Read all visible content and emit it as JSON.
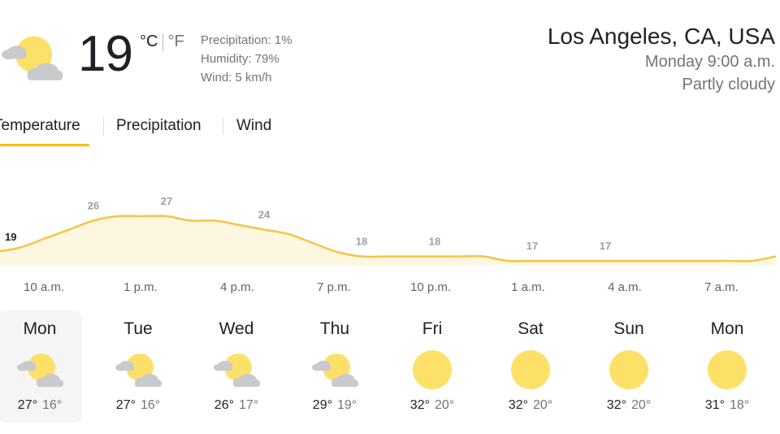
{
  "current": {
    "temperature": "19",
    "unit_c": "°C",
    "unit_f": "°F",
    "icon": "partly-cloudy-icon",
    "precipitation": "Precipitation: 1%",
    "humidity": "Humidity: 79%",
    "wind": "Wind: 5 km/h"
  },
  "location": {
    "city": "Los Angeles, CA, USA",
    "datetime": "Monday 9:00 a.m.",
    "condition": "Partly cloudy"
  },
  "tabs": [
    {
      "label": "Temperature",
      "active": true
    },
    {
      "label": "Precipitation",
      "active": false
    },
    {
      "label": "Wind",
      "active": false
    }
  ],
  "colors": {
    "accent": "#fbbc04",
    "chart_line": "#f6c445",
    "chart_fill": "#fef7e0",
    "sun": "#fde068",
    "cloud": "#c9cacd"
  },
  "chart_data": {
    "type": "area",
    "series": [
      {
        "values": [
          19,
          20,
          22,
          24,
          26,
          27,
          27,
          27,
          26,
          26,
          25,
          24,
          23,
          21,
          19,
          18,
          18,
          18,
          18,
          18,
          18,
          17,
          17,
          17,
          17,
          17,
          17,
          17,
          17,
          17,
          17,
          17,
          18
        ]
      }
    ],
    "value_labels": [
      {
        "index": 0,
        "text": "19"
      },
      {
        "index": 4,
        "text": "26"
      },
      {
        "index": 7,
        "text": "27"
      },
      {
        "index": 11,
        "text": "24"
      },
      {
        "index": 15,
        "text": "18"
      },
      {
        "index": 18,
        "text": "18"
      },
      {
        "index": 22,
        "text": "17"
      },
      {
        "index": 25,
        "text": "17"
      }
    ],
    "x_labels": [
      "10 a.m.",
      "1 p.m.",
      "4 p.m.",
      "7 p.m.",
      "10 p.m.",
      "1 a.m.",
      "4 a.m.",
      "7 a.m."
    ]
  },
  "forecast": [
    {
      "day": "Mon",
      "icon": "partly-cloudy-icon",
      "high": "27°",
      "low": "16°",
      "selected": true
    },
    {
      "day": "Tue",
      "icon": "partly-cloudy-icon",
      "high": "27°",
      "low": "16°",
      "selected": false
    },
    {
      "day": "Wed",
      "icon": "partly-cloudy-icon",
      "high": "26°",
      "low": "17°",
      "selected": false
    },
    {
      "day": "Thu",
      "icon": "partly-cloudy-icon",
      "high": "29°",
      "low": "19°",
      "selected": false
    },
    {
      "day": "Fri",
      "icon": "sun-icon",
      "high": "32°",
      "low": "20°",
      "selected": false
    },
    {
      "day": "Sat",
      "icon": "sun-icon",
      "high": "32°",
      "low": "20°",
      "selected": false
    },
    {
      "day": "Sun",
      "icon": "sun-icon",
      "high": "32°",
      "low": "20°",
      "selected": false
    },
    {
      "day": "Mon",
      "icon": "sun-icon",
      "high": "31°",
      "low": "18°",
      "selected": false
    }
  ]
}
